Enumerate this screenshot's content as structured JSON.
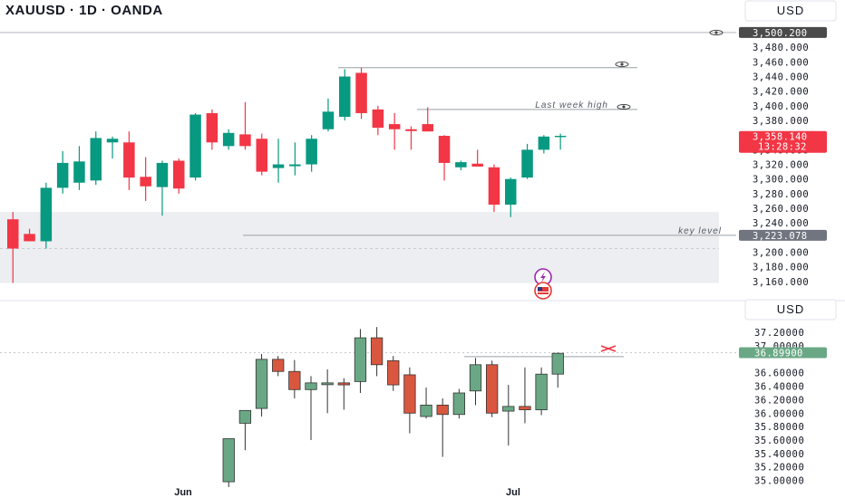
{
  "header": {
    "title": "XAUUSD · 1D · OANDA"
  },
  "colors": {
    "up": "#089981",
    "down": "#f23645",
    "up_lower": "#6aa885",
    "down_lower": "#d9573f",
    "zone": "#eceef1",
    "line": "#9aa0a6"
  },
  "icons": [
    "eye-icon",
    "lightning-icon",
    "flag-icon",
    "cross-marker-icon"
  ],
  "chart_data": [
    {
      "type": "candlestick",
      "title": "XAUUSD · 1D · OANDA",
      "currency_label": "USD",
      "ylim": [
        3150,
        3500
      ],
      "y_ticks": [
        "3,480.000",
        "3,460.000",
        "3,440.000",
        "3,420.000",
        "3,400.000",
        "3,380.000",
        "3,340.000",
        "3,320.000",
        "3,300.000",
        "3,280.000",
        "3,260.000",
        "3,240.000",
        "3,200.000",
        "3,180.000",
        "3,160.000"
      ],
      "price_labels": [
        {
          "value": 3500.2,
          "text": "3,500.200",
          "style": "dark"
        },
        {
          "value": 3358.14,
          "text": "3,358.140",
          "sub": "13:28:32",
          "style": "red"
        },
        {
          "value": 3223.078,
          "text": "3,223.078",
          "style": "grey"
        }
      ],
      "horizontal_lines": [
        {
          "value": 3500.2,
          "label": ""
        },
        {
          "value": 3452,
          "label": ""
        },
        {
          "value": 3395,
          "label": "Last week high"
        },
        {
          "value": 3223.078,
          "label": "key level"
        }
      ],
      "zones": [
        {
          "from": 3158,
          "to": 3255
        }
      ],
      "candles": [
        {
          "o": 3245,
          "h": 3255,
          "l": 3158,
          "c": 3205
        },
        {
          "o": 3225,
          "h": 3232,
          "l": 3215,
          "c": 3215
        },
        {
          "o": 3215,
          "h": 3295,
          "l": 3205,
          "c": 3288
        },
        {
          "o": 3288,
          "h": 3338,
          "l": 3280,
          "c": 3322
        },
        {
          "o": 3295,
          "h": 3345,
          "l": 3285,
          "c": 3324
        },
        {
          "o": 3298,
          "h": 3365,
          "l": 3292,
          "c": 3356
        },
        {
          "o": 3350,
          "h": 3358,
          "l": 3328,
          "c": 3355
        },
        {
          "o": 3350,
          "h": 3365,
          "l": 3285,
          "c": 3302
        },
        {
          "o": 3303,
          "h": 3330,
          "l": 3270,
          "c": 3290
        },
        {
          "o": 3289,
          "h": 3325,
          "l": 3250,
          "c": 3322
        },
        {
          "o": 3325,
          "h": 3328,
          "l": 3280,
          "c": 3287
        },
        {
          "o": 3302,
          "h": 3390,
          "l": 3298,
          "c": 3388
        },
        {
          "o": 3390,
          "h": 3395,
          "l": 3340,
          "c": 3350
        },
        {
          "o": 3345,
          "h": 3368,
          "l": 3340,
          "c": 3363
        },
        {
          "o": 3361,
          "h": 3405,
          "l": 3340,
          "c": 3345
        },
        {
          "o": 3355,
          "h": 3362,
          "l": 3305,
          "c": 3310
        },
        {
          "o": 3315,
          "h": 3355,
          "l": 3295,
          "c": 3320
        },
        {
          "o": 3320,
          "h": 3350,
          "l": 3305,
          "c": 3320
        },
        {
          "o": 3320,
          "h": 3360,
          "l": 3310,
          "c": 3355
        },
        {
          "o": 3368,
          "h": 3410,
          "l": 3365,
          "c": 3392
        },
        {
          "o": 3385,
          "h": 3450,
          "l": 3380,
          "c": 3440
        },
        {
          "o": 3445,
          "h": 3452,
          "l": 3382,
          "c": 3390
        },
        {
          "o": 3395,
          "h": 3400,
          "l": 3360,
          "c": 3370
        },
        {
          "o": 3375,
          "h": 3390,
          "l": 3340,
          "c": 3368
        },
        {
          "o": 3368,
          "h": 3372,
          "l": 3340,
          "c": 3366
        },
        {
          "o": 3375,
          "h": 3398,
          "l": 3365,
          "c": 3365
        },
        {
          "o": 3359,
          "h": 3360,
          "l": 3298,
          "c": 3322
        },
        {
          "o": 3316,
          "h": 3325,
          "l": 3312,
          "c": 3323
        },
        {
          "o": 3321,
          "h": 3340,
          "l": 3318,
          "c": 3317
        },
        {
          "o": 3316,
          "h": 3320,
          "l": 3255,
          "c": 3265
        },
        {
          "o": 3265,
          "h": 3302,
          "l": 3248,
          "c": 3300
        },
        {
          "o": 3302,
          "h": 3348,
          "l": 3300,
          "c": 3340
        },
        {
          "o": 3340,
          "h": 3360,
          "l": 3335,
          "c": 3358
        },
        {
          "o": 3358,
          "h": 3362,
          "l": 3340,
          "c": 3358.14
        }
      ]
    },
    {
      "type": "candlestick",
      "currency_label": "USD",
      "ylim": [
        34.9,
        37.35
      ],
      "y_ticks": [
        "37.20000",
        "37.00000",
        "36.60000",
        "36.40000",
        "36.20000",
        "36.00000",
        "35.80000",
        "35.60000",
        "35.40000",
        "35.20000",
        "35.00000"
      ],
      "price_labels": [
        {
          "value": 36.899,
          "text": "36.89900",
          "style": "green"
        }
      ],
      "horizontal_lines": [
        {
          "value": 36.84,
          "label": ""
        },
        {
          "value": 36.899,
          "label": ""
        }
      ],
      "x_labels": [
        {
          "index": 0,
          "text": "Jun"
        },
        {
          "index": 17,
          "text": "Jul"
        }
      ],
      "candles": [
        {
          "o": 34.98,
          "h": 35.62,
          "l": 34.9,
          "c": 35.62
        },
        {
          "o": 35.85,
          "h": 36.02,
          "l": 35.45,
          "c": 36.04
        },
        {
          "o": 36.07,
          "h": 36.88,
          "l": 35.95,
          "c": 36.8
        },
        {
          "o": 36.8,
          "h": 36.85,
          "l": 36.55,
          "c": 36.62
        },
        {
          "o": 36.62,
          "h": 36.79,
          "l": 36.22,
          "c": 36.35
        },
        {
          "o": 36.35,
          "h": 36.55,
          "l": 35.6,
          "c": 36.45
        },
        {
          "o": 36.43,
          "h": 36.65,
          "l": 36.0,
          "c": 36.45
        },
        {
          "o": 36.45,
          "h": 36.52,
          "l": 36.05,
          "c": 36.42
        },
        {
          "o": 36.47,
          "h": 37.25,
          "l": 36.3,
          "c": 37.12
        },
        {
          "o": 37.12,
          "h": 37.28,
          "l": 36.55,
          "c": 36.72
        },
        {
          "o": 36.78,
          "h": 36.85,
          "l": 36.33,
          "c": 36.42
        },
        {
          "o": 36.57,
          "h": 36.68,
          "l": 35.7,
          "c": 36.0
        },
        {
          "o": 35.95,
          "h": 36.38,
          "l": 35.92,
          "c": 36.12
        },
        {
          "o": 36.12,
          "h": 36.22,
          "l": 35.35,
          "c": 35.98
        },
        {
          "o": 35.98,
          "h": 36.36,
          "l": 35.92,
          "c": 36.3
        },
        {
          "o": 36.33,
          "h": 36.82,
          "l": 36.12,
          "c": 36.72
        },
        {
          "o": 36.72,
          "h": 36.78,
          "l": 35.94,
          "c": 36.0
        },
        {
          "o": 36.03,
          "h": 36.42,
          "l": 35.52,
          "c": 36.1
        },
        {
          "o": 36.1,
          "h": 36.68,
          "l": 35.85,
          "c": 36.05
        },
        {
          "o": 36.05,
          "h": 36.68,
          "l": 35.97,
          "c": 36.58
        },
        {
          "o": 36.58,
          "h": 36.9,
          "l": 36.38,
          "c": 36.89
        }
      ]
    }
  ]
}
